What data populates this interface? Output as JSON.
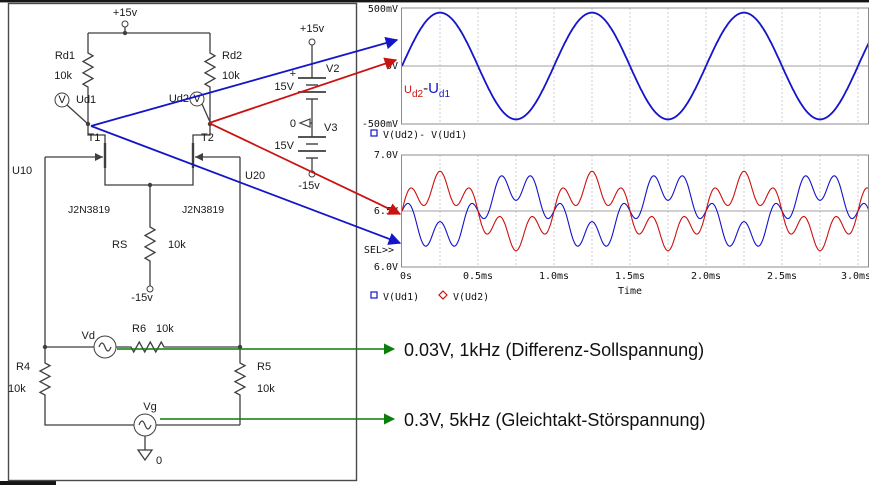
{
  "colors": {
    "trace_blue": "#1414c8",
    "trace_red": "#cc1111",
    "arrow_green": "#0a7d0a",
    "wire_gray": "#3f3f3f"
  },
  "circuit": {
    "plus15": "+15v",
    "rd1": "Rd1",
    "rd1_val": "10k",
    "rd2": "Rd2",
    "rd2_val": "10k",
    "probe_v": "V",
    "ud1": "Ud1",
    "ud2": "Ud2",
    "t1": "T1",
    "t2": "T2",
    "u10": "U10",
    "u20": "U20",
    "t1_model": "J2N3819",
    "t2_model": "J2N3819",
    "rs": "RS",
    "rs_val": "10k",
    "minus15": "-15v",
    "vd": "Vd",
    "r6": "R6",
    "r6_val": "10k",
    "r4": "R4",
    "r4_val": "10k",
    "r5": "R5",
    "r5_val": "10k",
    "vg": "Vg",
    "gnd": "0"
  },
  "supply": {
    "plus15": "+15v",
    "plus_sign": "+",
    "v2": "V2",
    "v2_val": "15V",
    "zero": "0",
    "v3": "V3",
    "v3_val": "15V",
    "minus15": "-15v"
  },
  "annotations": {
    "diff": "0.03V, 1kHz (Differenz-Sollspannung)",
    "common": "0.3V, 5kHz (Gleichtakt-Störspannung)"
  },
  "chart_data": [
    {
      "type": "line",
      "title": "",
      "y_ticks": [
        "500mV",
        "0V",
        "-500mV"
      ],
      "y_range_V": [
        -0.5,
        0.5
      ],
      "x_range_ms": [
        0,
        3.07
      ],
      "grid_step_ms": 0.25,
      "legend": [
        "V(Ud2)- V(Ud1)"
      ],
      "annotation_parts": [
        "U",
        "d2",
        "-",
        "U",
        "d1"
      ],
      "series": [
        {
          "name": "V(Ud2)- V(Ud1)",
          "color": "#1414c8",
          "base_V": 0,
          "components": [
            {
              "f_kHz": 1,
              "amp_V": 0.46,
              "phase_deg": 0
            }
          ]
        }
      ]
    },
    {
      "type": "line",
      "title": "",
      "y_ticks": [
        "7.0V",
        "6.5V",
        "6.0V"
      ],
      "sel_label": "SEL>>",
      "y_range_V": [
        6.0,
        7.0
      ],
      "x_range_ms": [
        0,
        3.07
      ],
      "x_ticks": [
        "0s",
        "0.5ms",
        "1.0ms",
        "1.5ms",
        "2.0ms",
        "2.5ms",
        "3.0ms"
      ],
      "xlabel": "Time",
      "grid_step_ms": 0.25,
      "legend": [
        "V(Ud1)",
        "V(Ud2)"
      ],
      "series": [
        {
          "name": "V(Ud1)",
          "marker": "square",
          "color": "#1414c8",
          "base_V": 6.5,
          "components": [
            {
              "f_kHz": 1,
              "amp_V": 0.225,
              "phase_deg": 180
            },
            {
              "f_kHz": 5,
              "amp_V": 0.13,
              "phase_deg": 0
            }
          ]
        },
        {
          "name": "V(Ud2)",
          "marker": "diamond",
          "color": "#cc1111",
          "base_V": 6.5,
          "components": [
            {
              "f_kHz": 1,
              "amp_V": 0.225,
              "phase_deg": 0
            },
            {
              "f_kHz": 5,
              "amp_V": 0.13,
              "phase_deg": 0
            }
          ]
        }
      ]
    }
  ]
}
